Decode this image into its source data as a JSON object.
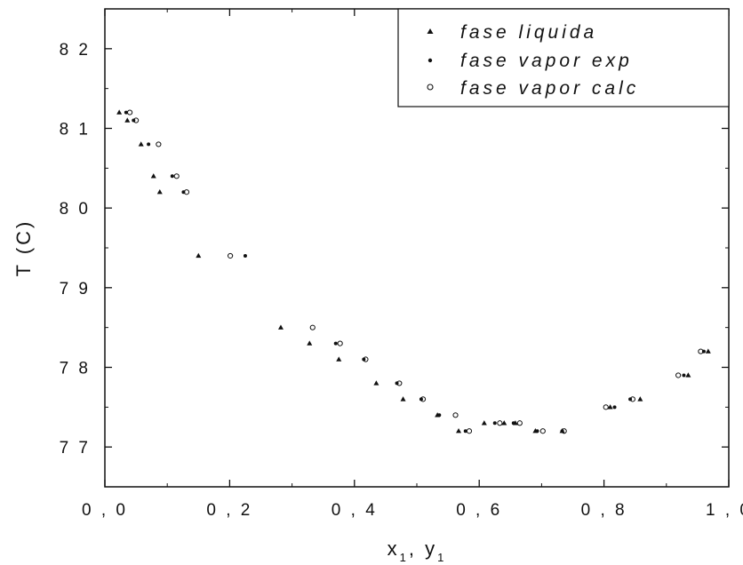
{
  "chart_data": {
    "type": "scatter",
    "xlabel": "x",
    "xlabel_part2": ", y",
    "xlabel_sub": "1",
    "ylabel": "T (C)",
    "xlim": [
      0.0,
      1.0
    ],
    "ylim": [
      76.5,
      82.5
    ],
    "x_ticks": [
      {
        "value": 0.0,
        "label": "0 , 0"
      },
      {
        "value": 0.2,
        "label": "0 , 2"
      },
      {
        "value": 0.4,
        "label": "0 , 4"
      },
      {
        "value": 0.6,
        "label": "0 , 6"
      },
      {
        "value": 0.8,
        "label": "0 , 8"
      },
      {
        "value": 1.0,
        "label": "1 , 0"
      }
    ],
    "y_ticks": [
      {
        "value": 77,
        "label": "7 7"
      },
      {
        "value": 78,
        "label": "7 8"
      },
      {
        "value": 79,
        "label": "7 9"
      },
      {
        "value": 80,
        "label": "8 0"
      },
      {
        "value": 81,
        "label": "8 1"
      },
      {
        "value": 82,
        "label": "8 2"
      }
    ],
    "grid": false,
    "legend": {
      "position": "top-right",
      "entries": [
        "fase liquida",
        "fase vapor exp",
        "fase vapor calc"
      ]
    },
    "series": [
      {
        "name": "fase liquida",
        "marker": "triangle",
        "points": [
          {
            "x": 0.023,
            "y": 81.2
          },
          {
            "x": 0.036,
            "y": 81.1
          },
          {
            "x": 0.058,
            "y": 80.8
          },
          {
            "x": 0.078,
            "y": 80.4
          },
          {
            "x": 0.088,
            "y": 80.2
          },
          {
            "x": 0.15,
            "y": 79.4
          },
          {
            "x": 0.282,
            "y": 78.5
          },
          {
            "x": 0.328,
            "y": 78.3
          },
          {
            "x": 0.375,
            "y": 78.1
          },
          {
            "x": 0.435,
            "y": 77.8
          },
          {
            "x": 0.478,
            "y": 77.6
          },
          {
            "x": 0.533,
            "y": 77.4
          },
          {
            "x": 0.567,
            "y": 77.2
          },
          {
            "x": 0.608,
            "y": 77.3
          },
          {
            "x": 0.64,
            "y": 77.3
          },
          {
            "x": 0.658,
            "y": 77.3
          },
          {
            "x": 0.69,
            "y": 77.2
          },
          {
            "x": 0.733,
            "y": 77.2
          },
          {
            "x": 0.81,
            "y": 77.5
          },
          {
            "x": 0.858,
            "y": 77.6
          },
          {
            "x": 0.935,
            "y": 77.9
          },
          {
            "x": 0.967,
            "y": 78.2
          }
        ]
      },
      {
        "name": "fase vapor exp",
        "marker": "dot",
        "points": [
          {
            "x": 0.034,
            "y": 81.2
          },
          {
            "x": 0.046,
            "y": 81.1
          },
          {
            "x": 0.07,
            "y": 80.8
          },
          {
            "x": 0.108,
            "y": 80.4
          },
          {
            "x": 0.126,
            "y": 80.2
          },
          {
            "x": 0.225,
            "y": 79.4
          },
          {
            "x": 0.37,
            "y": 78.3
          },
          {
            "x": 0.415,
            "y": 78.1
          },
          {
            "x": 0.468,
            "y": 77.8
          },
          {
            "x": 0.507,
            "y": 77.6
          },
          {
            "x": 0.536,
            "y": 77.4
          },
          {
            "x": 0.578,
            "y": 77.2
          },
          {
            "x": 0.625,
            "y": 77.3
          },
          {
            "x": 0.655,
            "y": 77.3
          },
          {
            "x": 0.693,
            "y": 77.2
          },
          {
            "x": 0.733,
            "y": 77.2
          },
          {
            "x": 0.817,
            "y": 77.5
          },
          {
            "x": 0.842,
            "y": 77.6
          },
          {
            "x": 0.928,
            "y": 77.9
          },
          {
            "x": 0.96,
            "y": 78.2
          }
        ]
      },
      {
        "name": "fase vapor calc",
        "marker": "circle",
        "points": [
          {
            "x": 0.04,
            "y": 81.2
          },
          {
            "x": 0.05,
            "y": 81.1
          },
          {
            "x": 0.086,
            "y": 80.8
          },
          {
            "x": 0.115,
            "y": 80.4
          },
          {
            "x": 0.131,
            "y": 80.2
          },
          {
            "x": 0.201,
            "y": 79.4
          },
          {
            "x": 0.333,
            "y": 78.5
          },
          {
            "x": 0.377,
            "y": 78.3
          },
          {
            "x": 0.418,
            "y": 78.1
          },
          {
            "x": 0.472,
            "y": 77.8
          },
          {
            "x": 0.51,
            "y": 77.6
          },
          {
            "x": 0.562,
            "y": 77.4
          },
          {
            "x": 0.584,
            "y": 77.2
          },
          {
            "x": 0.633,
            "y": 77.3
          },
          {
            "x": 0.665,
            "y": 77.3
          },
          {
            "x": 0.702,
            "y": 77.2
          },
          {
            "x": 0.736,
            "y": 77.2
          },
          {
            "x": 0.803,
            "y": 77.5
          },
          {
            "x": 0.846,
            "y": 77.6
          },
          {
            "x": 0.919,
            "y": 77.9
          },
          {
            "x": 0.955,
            "y": 78.2
          }
        ]
      }
    ]
  }
}
